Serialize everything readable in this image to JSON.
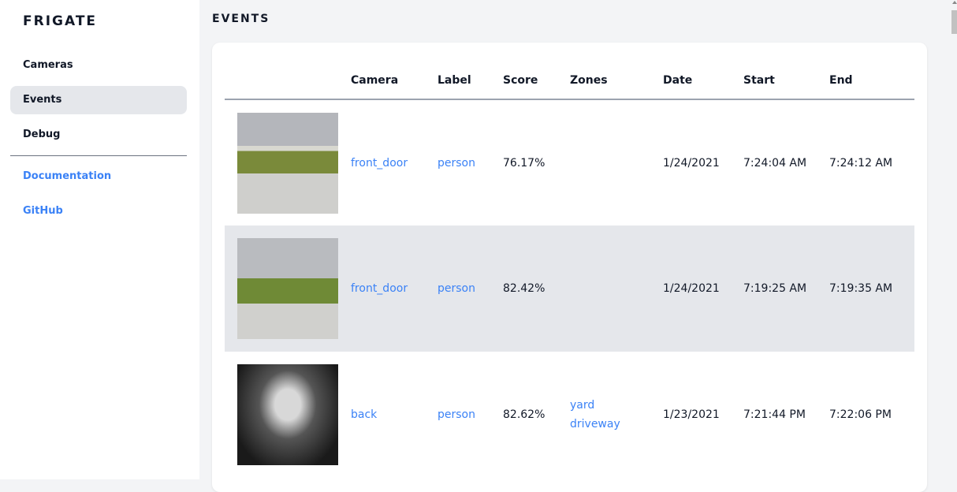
{
  "sidebar": {
    "brand": "FRIGATE",
    "items": [
      {
        "label": "Cameras"
      },
      {
        "label": "Events",
        "active": true
      },
      {
        "label": "Debug"
      }
    ],
    "links": [
      {
        "label": "Documentation"
      },
      {
        "label": "GitHub"
      }
    ]
  },
  "page": {
    "title": "EVENTS"
  },
  "table": {
    "headers": [
      "",
      "Camera",
      "Label",
      "Score",
      "Zones",
      "Date",
      "Start",
      "End"
    ],
    "rows": [
      {
        "camera": "front_door",
        "label": "person",
        "score": "76.17%",
        "zones": [
          "",
          ""
        ],
        "date": "1/24/2021",
        "start": "7:24:04 AM",
        "end": "7:24:12 AM"
      },
      {
        "camera": "front_door",
        "label": "person",
        "score": "82.42%",
        "zones": [
          "",
          ""
        ],
        "date": "1/24/2021",
        "start": "7:19:25 AM",
        "end": "7:19:35 AM"
      },
      {
        "camera": "back",
        "label": "person",
        "score": "82.62%",
        "zones": [
          "yard",
          "driveway"
        ],
        "date": "1/23/2021",
        "start": "7:21:44 PM",
        "end": "7:22:06 PM"
      }
    ]
  }
}
